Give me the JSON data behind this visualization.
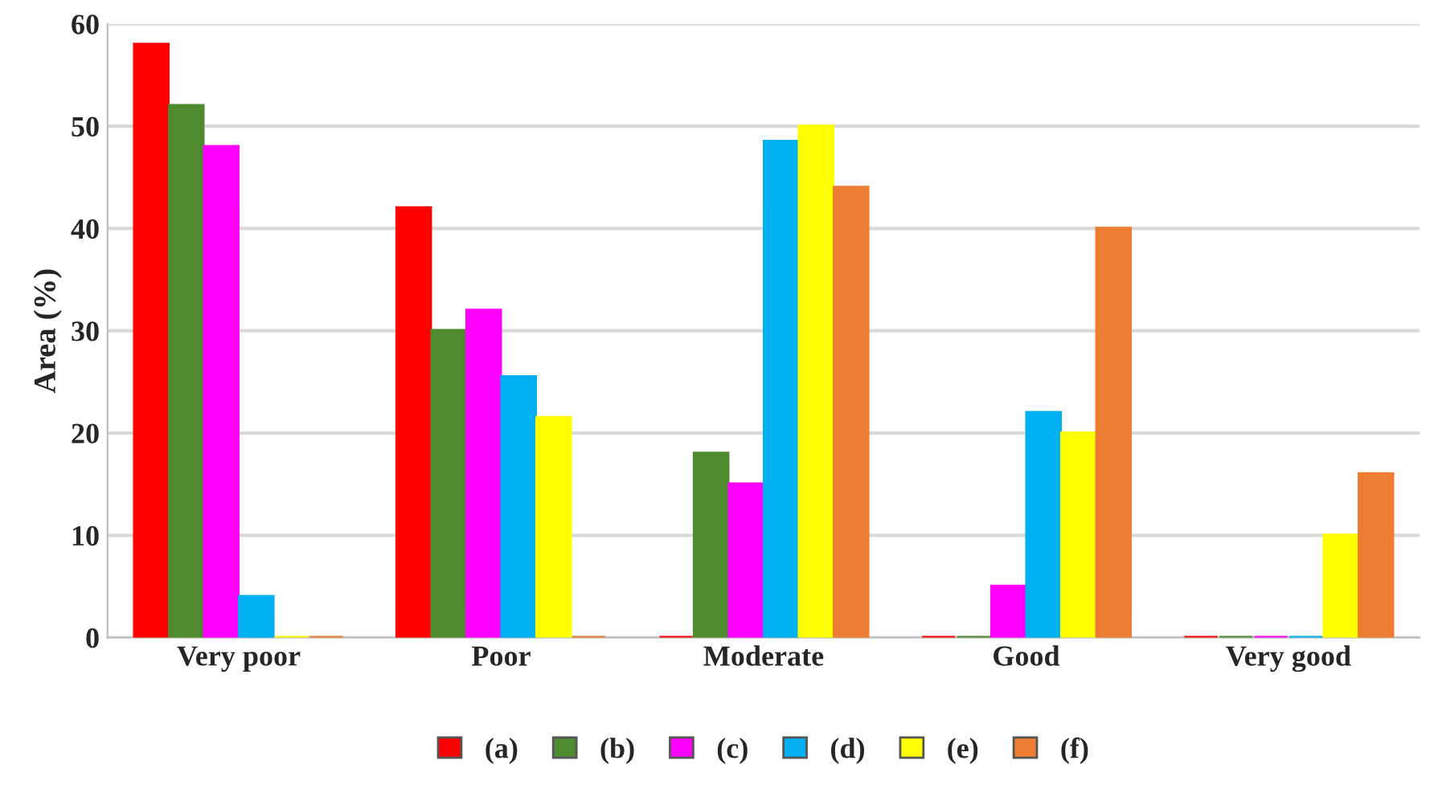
{
  "chart_data": {
    "type": "bar",
    "ylabel": "Area (%)",
    "categories": [
      "Very poor",
      "Poor",
      "Moderate",
      "Good",
      "Very good"
    ],
    "series": [
      {
        "name": "(a)",
        "color": "#ff0000",
        "values": [
          58,
          42,
          0,
          0,
          0
        ]
      },
      {
        "name": "(b)",
        "color": "#4e8a2e",
        "values": [
          52,
          30,
          18,
          0,
          0
        ]
      },
      {
        "name": "(c)",
        "color": "#ff00ff",
        "values": [
          48,
          32,
          15,
          5,
          0
        ]
      },
      {
        "name": "(d)",
        "color": "#00b0f0",
        "values": [
          4,
          25.5,
          48.5,
          22,
          0
        ]
      },
      {
        "name": "(e)",
        "color": "#ffff00",
        "values": [
          0,
          21.5,
          50,
          20,
          10
        ]
      },
      {
        "name": "(f)",
        "color": "#ed7d31",
        "values": [
          0,
          0,
          44,
          40,
          16
        ]
      }
    ],
    "ylim": [
      0,
      60
    ],
    "yticks": [
      0,
      10,
      20,
      30,
      40,
      50,
      60
    ],
    "grid": "y",
    "legend": "bottom"
  }
}
